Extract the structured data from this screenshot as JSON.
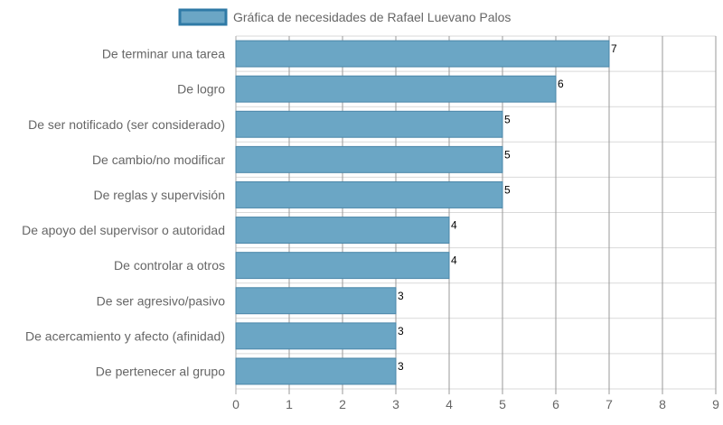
{
  "chart_data": {
    "type": "bar",
    "orientation": "horizontal",
    "categories": [
      "De terminar una tarea",
      "De logro",
      "De ser notificado (ser considerado)",
      "De cambio/no modificar",
      "De reglas y supervisión",
      "De apoyo del supervisor o autoridad",
      "De controlar a otros",
      "De ser agresivo/pasivo",
      "De acercamiento y afecto (afinidad)",
      "De pertenecer al grupo"
    ],
    "series": [
      {
        "name": "Gráfica de necesidades de Rafael Luevano Palos",
        "values": [
          7,
          6,
          5,
          5,
          5,
          4,
          4,
          3,
          3,
          3
        ],
        "color": "#6ba6c5",
        "border_color": "#4a86a8"
      }
    ],
    "xlim": [
      0,
      9
    ],
    "x_ticks": [
      0,
      1,
      2,
      3,
      4,
      5,
      6,
      7,
      8,
      9
    ],
    "grid": true,
    "legend_position": "top",
    "data_labels": true,
    "colors": {
      "legend_fill": "#6ba6c5",
      "legend_border": "#2f7aa6",
      "axis_text": "#666666",
      "grid_line": "#d9d9d9",
      "major_grid_line": "#999999",
      "value_label": "#000000"
    }
  }
}
